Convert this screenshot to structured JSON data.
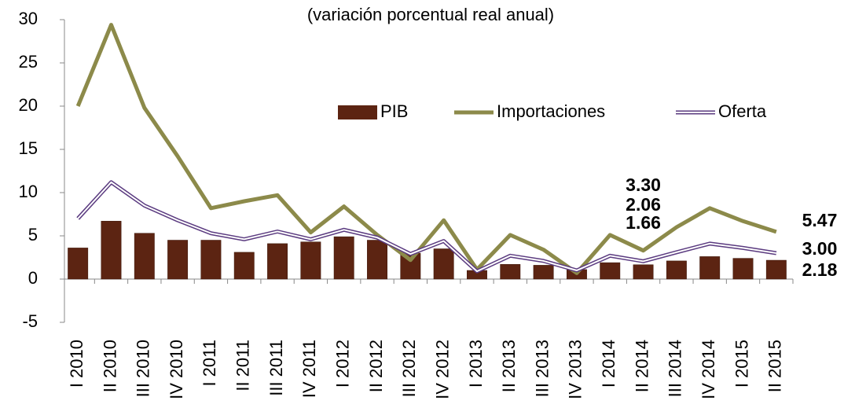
{
  "chart_data": {
    "type": "bar_line",
    "title": "(variación porcentual real anual)",
    "categories": [
      "I 2010",
      "II 2010",
      "III 2010",
      "IV 2010",
      "I 2011",
      "II 2011",
      "III 2011",
      "IV 2011",
      "I 2012",
      "II 2012",
      "III 2012",
      "IV 2012",
      "I 2013",
      "II 2013",
      "III 2013",
      "IV 2013",
      "I 2014",
      "II 2014",
      "III 2014",
      "IV 2014",
      "I 2015",
      "II 2015"
    ],
    "series": [
      {
        "name": "PIB",
        "type": "bar",
        "color": "#5c2412",
        "label_color": "#a0461f",
        "values": [
          3.6,
          6.7,
          5.3,
          4.5,
          4.5,
          3.1,
          4.1,
          4.3,
          4.9,
          4.5,
          3.0,
          3.5,
          1.0,
          1.7,
          1.6,
          1.1,
          1.9,
          1.66,
          2.1,
          2.6,
          2.4,
          2.18
        ],
        "value_labels": [
          null,
          null,
          null,
          null,
          null,
          null,
          null,
          null,
          null,
          null,
          null,
          null,
          null,
          null,
          null,
          null,
          null,
          "1.66",
          null,
          null,
          null,
          "2.18"
        ]
      },
      {
        "name": "Importaciones",
        "type": "line",
        "color": "#8c8a4a",
        "label_color": "#8c8a4a",
        "values": [
          20.0,
          29.4,
          19.8,
          14.2,
          8.2,
          9.0,
          9.7,
          5.4,
          8.4,
          5.1,
          2.2,
          6.8,
          1.1,
          5.1,
          3.4,
          0.7,
          5.1,
          3.3,
          6.0,
          8.2,
          6.7,
          5.47
        ],
        "value_labels": [
          null,
          null,
          null,
          null,
          null,
          null,
          null,
          null,
          null,
          null,
          null,
          null,
          null,
          null,
          null,
          null,
          null,
          "3.30",
          null,
          null,
          null,
          "5.47"
        ]
      },
      {
        "name": "Oferta",
        "type": "double_line",
        "color": "#5b3b80",
        "label_color": "#5b3b80",
        "values": [
          7.0,
          11.2,
          8.5,
          6.8,
          5.3,
          4.6,
          5.5,
          4.6,
          5.7,
          4.8,
          2.9,
          4.4,
          0.9,
          2.7,
          2.1,
          1.0,
          2.7,
          2.06,
          3.1,
          4.1,
          3.6,
          3.0
        ],
        "value_labels": [
          null,
          null,
          null,
          null,
          null,
          null,
          null,
          null,
          null,
          null,
          null,
          null,
          null,
          null,
          null,
          null,
          null,
          "2.06",
          null,
          null,
          null,
          "3.00"
        ]
      }
    ],
    "ylim": [
      -5,
      30
    ],
    "yticks": [
      -5,
      0,
      5,
      10,
      15,
      20,
      25,
      30
    ],
    "grid": false
  }
}
